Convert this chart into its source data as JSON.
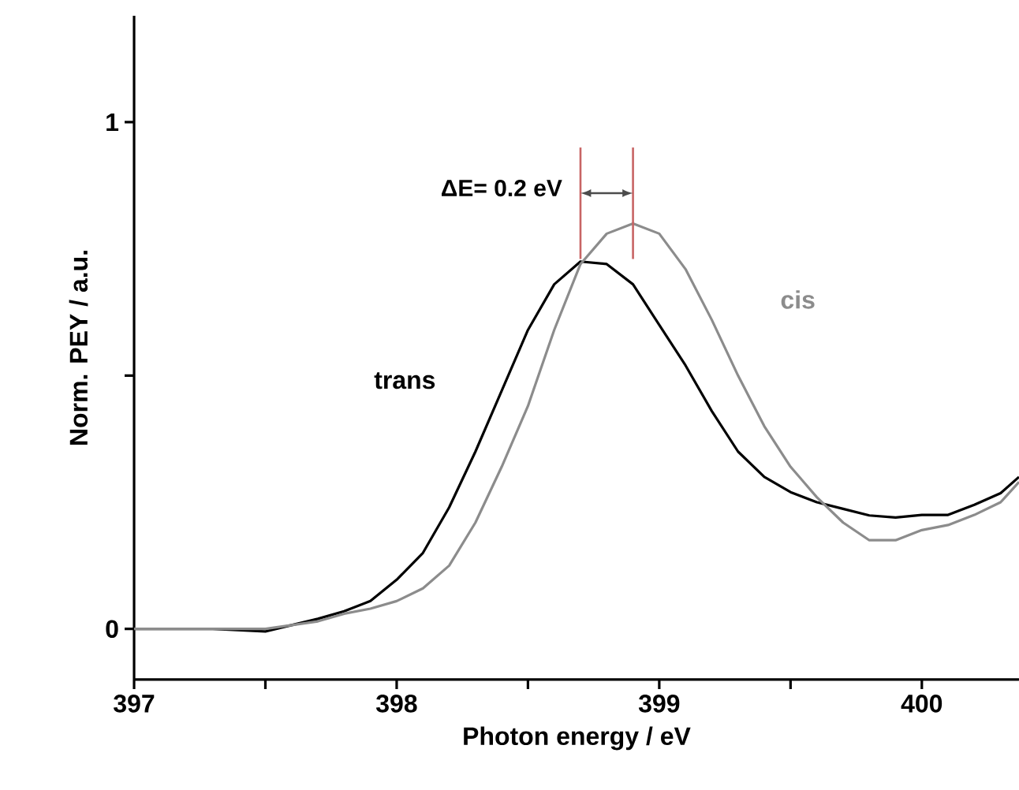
{
  "chart_data": {
    "type": "line",
    "xlabel": "Photon energy / eV",
    "ylabel": "Norm. PEY / a.u.",
    "xlim": [
      397,
      400.37
    ],
    "ylim": [
      -0.1,
      1.21
    ],
    "xticks": [
      397,
      {
        "value": 397.5,
        "label": null
      },
      398,
      {
        "value": 398.5,
        "label": null
      },
      399,
      {
        "value": 399.5,
        "label": null
      },
      400
    ],
    "yticks": [
      0,
      {
        "value": 0.5,
        "label": null
      },
      1
    ],
    "marker": "none",
    "line_style": "solid",
    "grid": false,
    "legend": false,
    "x": [
      397.0,
      397.3,
      397.5,
      397.7,
      397.8,
      397.9,
      398.0,
      398.1,
      398.2,
      398.3,
      398.4,
      398.5,
      398.6,
      398.7,
      398.8,
      398.9,
      399.0,
      399.1,
      399.2,
      399.3,
      399.4,
      399.5,
      399.6,
      399.7,
      399.8,
      399.9,
      400.0,
      400.1,
      400.2,
      400.3,
      400.37
    ],
    "series": [
      {
        "name": "trans",
        "color": "#000000",
        "values": [
          0.0,
          0.0,
          -0.005,
          0.02,
          0.035,
          0.055,
          0.097,
          0.15,
          0.24,
          0.35,
          0.47,
          0.59,
          0.68,
          0.725,
          0.72,
          0.68,
          0.6,
          0.52,
          0.43,
          0.35,
          0.3,
          0.27,
          0.25,
          0.237,
          0.224,
          0.22,
          0.225,
          0.225,
          0.245,
          0.268,
          0.3
        ]
      },
      {
        "name": "cis",
        "color": "#8c8c8c",
        "values": [
          0.0,
          0.0,
          0.0,
          0.015,
          0.03,
          0.04,
          0.055,
          0.08,
          0.125,
          0.21,
          0.32,
          0.44,
          0.59,
          0.72,
          0.78,
          0.8,
          0.78,
          0.71,
          0.61,
          0.5,
          0.4,
          0.32,
          0.26,
          0.21,
          0.175,
          0.175,
          0.195,
          0.205,
          0.225,
          0.25,
          0.29
        ]
      }
    ],
    "ref_lines": [
      {
        "axis": "x",
        "value": 398.7,
        "color": "#c86464"
      },
      {
        "axis": "x",
        "value": 398.9,
        "color": "#c86464"
      }
    ],
    "annotations": [
      "ΔE= 0.2 eV"
    ]
  }
}
